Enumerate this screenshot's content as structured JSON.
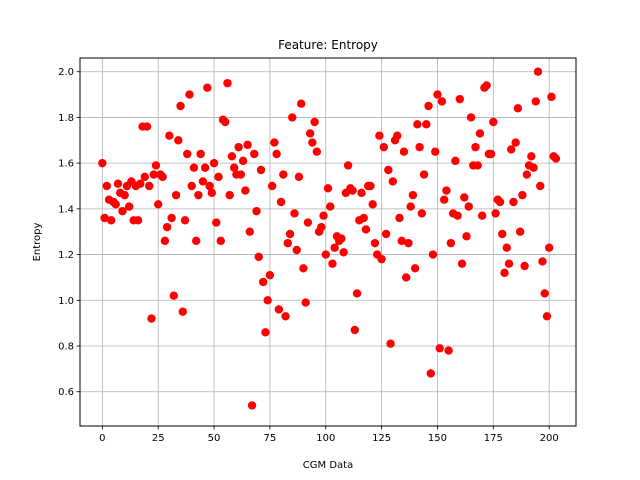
{
  "chart_data": {
    "type": "scatter",
    "title": "Feature: Entropy",
    "xlabel": "CGM Data",
    "ylabel": "Entropy",
    "xlim": [
      -10,
      212
    ],
    "ylim": [
      0.45,
      2.06
    ],
    "xticks": [
      0,
      25,
      50,
      75,
      100,
      125,
      150,
      175,
      200
    ],
    "yticks": [
      0.6,
      0.8,
      1.0,
      1.2,
      1.4,
      1.6,
      1.8,
      2.0
    ],
    "xtick_labels": [
      "0",
      "25",
      "50",
      "75",
      "100",
      "125",
      "150",
      "175",
      "200"
    ],
    "ytick_labels": [
      "0.6",
      "0.8",
      "1.0",
      "1.2",
      "1.4",
      "1.6",
      "1.8",
      "2.0"
    ],
    "grid": true,
    "marker_color": "#ff0000",
    "series": [
      {
        "points": [
          [
            0,
            1.6
          ],
          [
            1,
            1.36
          ],
          [
            2,
            1.5
          ],
          [
            3,
            1.44
          ],
          [
            4,
            1.35
          ],
          [
            5,
            1.43
          ],
          [
            6,
            1.42
          ],
          [
            7,
            1.51
          ],
          [
            8,
            1.47
          ],
          [
            9,
            1.39
          ],
          [
            10,
            1.46
          ],
          [
            11,
            1.5
          ],
          [
            12,
            1.41
          ],
          [
            13,
            1.52
          ],
          [
            14,
            1.35
          ],
          [
            15,
            1.5
          ],
          [
            16,
            1.35
          ],
          [
            17,
            1.51
          ],
          [
            18,
            1.76
          ],
          [
            19,
            1.54
          ],
          [
            20,
            1.76
          ],
          [
            21,
            1.5
          ],
          [
            22,
            0.92
          ],
          [
            23,
            1.55
          ],
          [
            24,
            1.59
          ],
          [
            25,
            1.42
          ],
          [
            26,
            1.55
          ],
          [
            27,
            1.54
          ],
          [
            28,
            1.26
          ],
          [
            29,
            1.32
          ],
          [
            30,
            1.72
          ],
          [
            31,
            1.36
          ],
          [
            32,
            1.02
          ],
          [
            33,
            1.46
          ],
          [
            34,
            1.7
          ],
          [
            35,
            1.85
          ],
          [
            36,
            0.95
          ],
          [
            37,
            1.35
          ],
          [
            38,
            1.64
          ],
          [
            39,
            1.9
          ],
          [
            40,
            1.5
          ],
          [
            41,
            1.58
          ],
          [
            42,
            1.26
          ],
          [
            43,
            1.46
          ],
          [
            44,
            1.64
          ],
          [
            45,
            1.52
          ],
          [
            46,
            1.58
          ],
          [
            47,
            1.93
          ],
          [
            48,
            1.5
          ],
          [
            49,
            1.47
          ],
          [
            50,
            1.6
          ],
          [
            51,
            1.34
          ],
          [
            52,
            1.54
          ],
          [
            53,
            1.26
          ],
          [
            54,
            1.79
          ],
          [
            55,
            1.78
          ],
          [
            56,
            1.95
          ],
          [
            57,
            1.46
          ],
          [
            58,
            1.63
          ],
          [
            59,
            1.58
          ],
          [
            60,
            1.55
          ],
          [
            61,
            1.67
          ],
          [
            62,
            1.55
          ],
          [
            63,
            1.61
          ],
          [
            64,
            1.48
          ],
          [
            65,
            1.68
          ],
          [
            66,
            1.3
          ],
          [
            67,
            0.54
          ],
          [
            68,
            1.64
          ],
          [
            69,
            1.39
          ],
          [
            70,
            1.19
          ],
          [
            71,
            1.57
          ],
          [
            72,
            1.08
          ],
          [
            73,
            0.86
          ],
          [
            74,
            1.0
          ],
          [
            75,
            1.11
          ],
          [
            76,
            1.5
          ],
          [
            77,
            1.69
          ],
          [
            78,
            1.64
          ],
          [
            79,
            0.96
          ],
          [
            80,
            1.43
          ],
          [
            81,
            1.55
          ],
          [
            82,
            0.93
          ],
          [
            83,
            1.25
          ],
          [
            84,
            1.29
          ],
          [
            85,
            1.8
          ],
          [
            86,
            1.38
          ],
          [
            87,
            1.22
          ],
          [
            88,
            1.54
          ],
          [
            89,
            1.86
          ],
          [
            90,
            1.14
          ],
          [
            91,
            0.99
          ],
          [
            92,
            1.34
          ],
          [
            93,
            1.73
          ],
          [
            94,
            1.69
          ],
          [
            95,
            1.78
          ],
          [
            96,
            1.65
          ],
          [
            97,
            1.3
          ],
          [
            98,
            1.32
          ],
          [
            99,
            1.37
          ],
          [
            100,
            1.2
          ],
          [
            101,
            1.49
          ],
          [
            102,
            1.41
          ],
          [
            103,
            1.16
          ],
          [
            104,
            1.23
          ],
          [
            105,
            1.28
          ],
          [
            106,
            1.26
          ],
          [
            107,
            1.27
          ],
          [
            108,
            1.21
          ],
          [
            109,
            1.47
          ],
          [
            110,
            1.59
          ],
          [
            111,
            1.49
          ],
          [
            112,
            1.48
          ],
          [
            113,
            0.87
          ],
          [
            114,
            1.03
          ],
          [
            115,
            1.35
          ],
          [
            116,
            1.47
          ],
          [
            117,
            1.36
          ],
          [
            118,
            1.31
          ],
          [
            119,
            1.5
          ],
          [
            120,
            1.5
          ],
          [
            121,
            1.42
          ],
          [
            122,
            1.25
          ],
          [
            123,
            1.2
          ],
          [
            124,
            1.72
          ],
          [
            125,
            1.18
          ],
          [
            126,
            1.67
          ],
          [
            127,
            1.29
          ],
          [
            128,
            1.57
          ],
          [
            129,
            0.81
          ],
          [
            130,
            1.52
          ],
          [
            131,
            1.7
          ],
          [
            132,
            1.72
          ],
          [
            133,
            1.36
          ],
          [
            134,
            1.26
          ],
          [
            135,
            1.65
          ],
          [
            136,
            1.1
          ],
          [
            137,
            1.25
          ],
          [
            138,
            1.41
          ],
          [
            139,
            1.46
          ],
          [
            140,
            1.14
          ],
          [
            141,
            1.77
          ],
          [
            142,
            1.67
          ],
          [
            143,
            1.38
          ],
          [
            144,
            1.55
          ],
          [
            145,
            1.77
          ],
          [
            146,
            1.85
          ],
          [
            147,
            0.68
          ],
          [
            148,
            1.2
          ],
          [
            149,
            1.65
          ],
          [
            150,
            1.9
          ],
          [
            151,
            0.79
          ],
          [
            152,
            1.87
          ],
          [
            153,
            1.44
          ],
          [
            154,
            1.48
          ],
          [
            155,
            0.78
          ],
          [
            156,
            1.25
          ],
          [
            157,
            1.38
          ],
          [
            158,
            1.61
          ],
          [
            159,
            1.37
          ],
          [
            160,
            1.88
          ],
          [
            161,
            1.16
          ],
          [
            162,
            1.45
          ],
          [
            163,
            1.28
          ],
          [
            164,
            1.41
          ],
          [
            165,
            1.8
          ],
          [
            166,
            1.59
          ],
          [
            167,
            1.67
          ],
          [
            168,
            1.59
          ],
          [
            169,
            1.73
          ],
          [
            170,
            1.37
          ],
          [
            171,
            1.93
          ],
          [
            172,
            1.94
          ],
          [
            173,
            1.64
          ],
          [
            174,
            1.64
          ],
          [
            175,
            1.78
          ],
          [
            176,
            1.38
          ],
          [
            177,
            1.44
          ],
          [
            178,
            1.43
          ],
          [
            179,
            1.29
          ],
          [
            180,
            1.12
          ],
          [
            181,
            1.23
          ],
          [
            182,
            1.16
          ],
          [
            183,
            1.66
          ],
          [
            184,
            1.43
          ],
          [
            185,
            1.69
          ],
          [
            186,
            1.84
          ],
          [
            187,
            1.3
          ],
          [
            188,
            1.46
          ],
          [
            189,
            1.15
          ],
          [
            190,
            1.55
          ],
          [
            191,
            1.59
          ],
          [
            192,
            1.63
          ],
          [
            193,
            1.58
          ],
          [
            194,
            1.87
          ],
          [
            195,
            2.0
          ],
          [
            196,
            1.5
          ],
          [
            197,
            1.17
          ],
          [
            198,
            1.03
          ],
          [
            199,
            0.93
          ],
          [
            200,
            1.23
          ],
          [
            201,
            1.89
          ],
          [
            202,
            1.63
          ],
          [
            203,
            1.62
          ]
        ]
      }
    ]
  }
}
